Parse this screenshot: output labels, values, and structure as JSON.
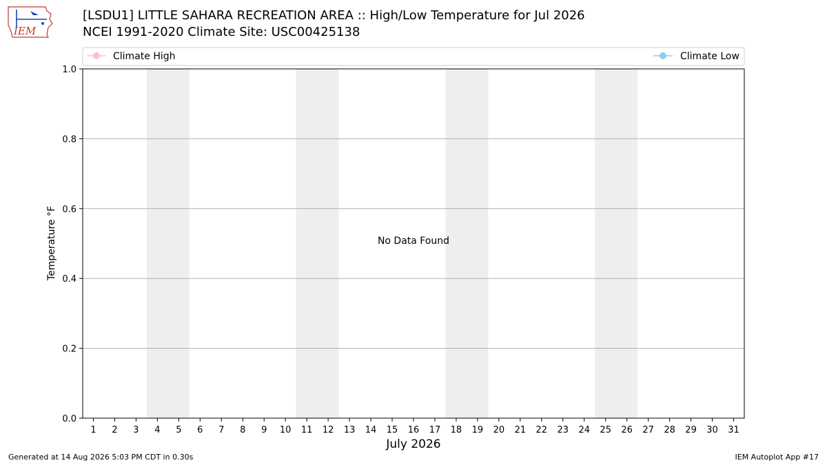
{
  "header": {
    "logo_text": "IEM",
    "title_line1": "[LSDU1] LITTLE SAHARA RECREATION AREA :: High/Low Temperature for Jul 2026",
    "title_line2": "NCEI 1991-2020 Climate Site: USC00425138"
  },
  "chart_data": {
    "type": "line",
    "xlabel": "July 2026",
    "ylabel": "Temperature °F",
    "x_categories": [
      "1",
      "2",
      "3",
      "4",
      "5",
      "6",
      "7",
      "8",
      "9",
      "10",
      "11",
      "12",
      "13",
      "14",
      "15",
      "16",
      "17",
      "18",
      "19",
      "20",
      "21",
      "22",
      "23",
      "24",
      "25",
      "26",
      "27",
      "28",
      "29",
      "30",
      "31"
    ],
    "ylim": [
      0.0,
      1.0
    ],
    "yticks": [
      "0.0",
      "0.2",
      "0.4",
      "0.6",
      "0.8",
      "1.0"
    ],
    "weekend_days": [
      [
        4,
        5
      ],
      [
        11,
        12
      ],
      [
        18,
        19
      ],
      [
        25,
        26
      ]
    ],
    "series": [
      {
        "name": "Climate High",
        "color": "#ffc0cb",
        "values": []
      },
      {
        "name": "Climate Low",
        "color": "#87ceeb",
        "values": []
      }
    ],
    "annotation": "No Data Found",
    "grid": "horizontal",
    "legend": "top (above plot, spanning width)"
  },
  "footer": {
    "left": "Generated at 14 Aug 2026 5:03 PM CDT in 0.30s",
    "right": "IEM Autoplot App #17"
  }
}
